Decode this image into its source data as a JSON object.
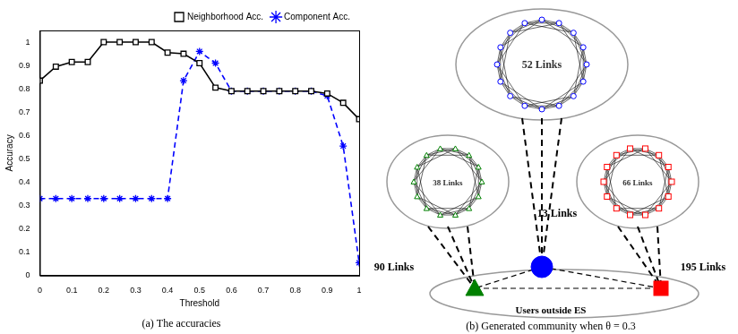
{
  "chart_data": {
    "type": "line",
    "title": "(a) The accuracies",
    "x_label": "Threshold",
    "y_label": "Accuracy",
    "x": [
      0,
      0.05,
      0.1,
      0.15,
      0.2,
      0.25,
      0.3,
      0.35,
      0.4,
      0.45,
      0.5,
      0.55,
      0.6,
      0.65,
      0.7,
      0.75,
      0.8,
      0.85,
      0.9,
      0.95,
      1
    ],
    "series": [
      {
        "name": "Neighborhood Acc.",
        "color": "#000000",
        "marker": "square",
        "line_style": "solid",
        "values": [
          0.835,
          0.895,
          0.915,
          0.915,
          1.0,
          1.0,
          1.0,
          1.0,
          0.955,
          0.95,
          0.91,
          0.805,
          0.79,
          0.79,
          0.79,
          0.79,
          0.79,
          0.79,
          0.78,
          0.74,
          0.67
        ]
      },
      {
        "name": "Component Acc.",
        "color": "#0000ff",
        "marker": "star",
        "line_style": "dashed",
        "values": [
          0.33,
          0.33,
          0.33,
          0.33,
          0.33,
          0.33,
          0.33,
          0.33,
          0.33,
          0.835,
          0.96,
          0.91,
          0.79,
          0.79,
          0.79,
          0.79,
          0.79,
          0.79,
          0.77,
          0.555,
          0.055
        ]
      }
    ],
    "xlim": [
      0,
      1
    ],
    "xticks": [
      0,
      0.1,
      0.2,
      0.3,
      0.4,
      0.5,
      0.6,
      0.7,
      0.8,
      0.9,
      1
    ],
    "ylim": [
      0,
      1.05
    ],
    "yticks": [
      0,
      0.1,
      0.2,
      0.3,
      0.4,
      0.5,
      0.6,
      0.7,
      0.8,
      0.9,
      1
    ],
    "grid": false,
    "legend": "upper right"
  },
  "diagram": {
    "caption": "(b) Generated community when θ = 0.3",
    "communities": [
      {
        "links": "52 Links",
        "color": "#0000ff",
        "marker": "circle",
        "outside_links": "13 Links"
      },
      {
        "links": "38 Links",
        "color": "#008000",
        "marker": "triangle",
        "outside_links": "90 Links"
      },
      {
        "links": "66 Links",
        "color": "#ff0000",
        "marker": "square",
        "outside_links": "195 Links"
      }
    ],
    "outside": {
      "label": "Users outside ES"
    }
  }
}
